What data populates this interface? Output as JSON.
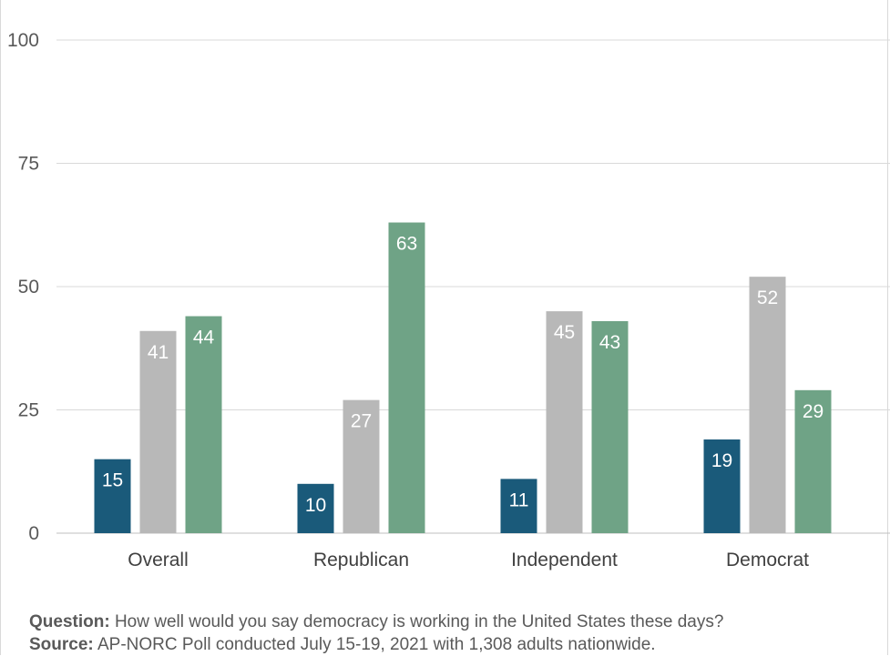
{
  "chart_data": {
    "type": "bar",
    "categories": [
      "Overall",
      "Republican",
      "Independent",
      "Democrat"
    ],
    "series": [
      {
        "values": [
          15,
          10,
          11,
          19
        ],
        "color": "#1a5a7a"
      },
      {
        "values": [
          41,
          27,
          45,
          52
        ],
        "color": "#b8b8b8"
      },
      {
        "values": [
          44,
          63,
          43,
          29
        ],
        "color": "#6fa386"
      }
    ],
    "ylim": [
      0,
      100
    ],
    "yticks": [
      0,
      25,
      50,
      75,
      100
    ],
    "grid": true,
    "title": "",
    "xlabel": "",
    "ylabel": ""
  },
  "footnote": {
    "question_label": "Question:",
    "question_text": "How well would you say democracy is working in the United States these days?",
    "source_label": "Source:",
    "source_text": "AP-NORC Poll  conducted July 15-19, 2021 with 1,308 adults nationwide."
  },
  "colors": {
    "gridline": "#d9d9d9",
    "axis": "#bfbfbf"
  }
}
